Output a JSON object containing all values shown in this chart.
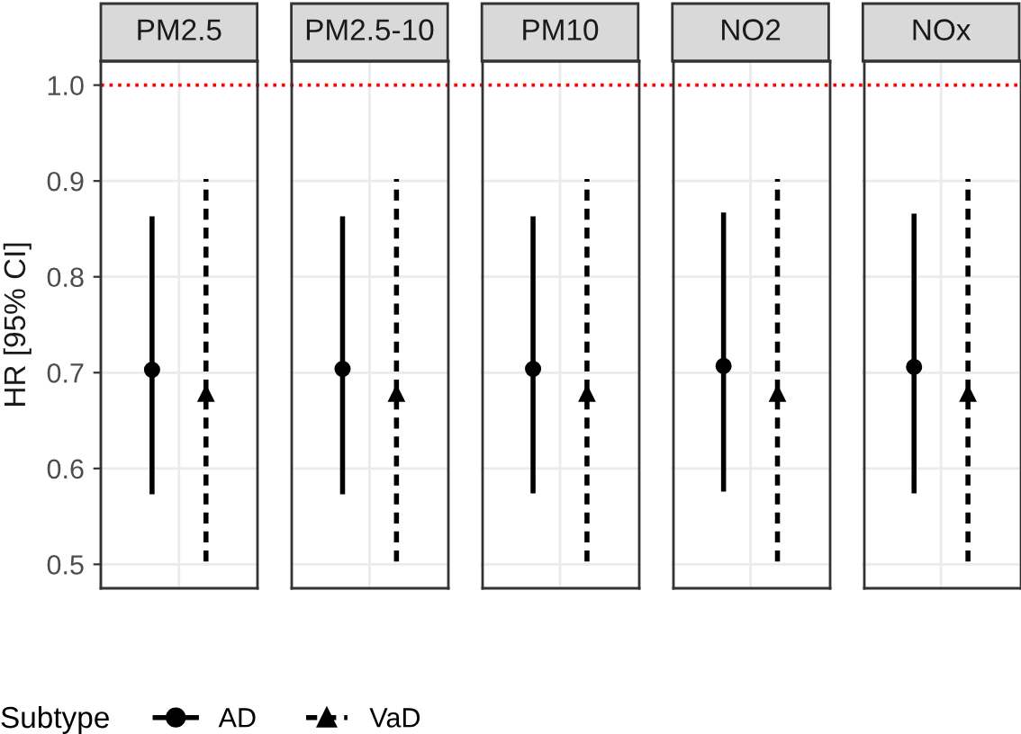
{
  "chart_data": {
    "type": "scatter",
    "ylabel": "HR [95% CI]",
    "categories": [
      "PM2.5",
      "PM2.5-10",
      "PM10",
      "NO2",
      "NOx"
    ],
    "ylim": [
      0.475,
      1.025
    ],
    "yticks": [
      {
        "value": 0.5,
        "label": "0.5"
      },
      {
        "value": 0.6,
        "label": "0.6"
      },
      {
        "value": 0.7,
        "label": "0.7"
      },
      {
        "value": 0.8,
        "label": "0.8"
      },
      {
        "value": 0.9,
        "label": "0.9"
      },
      {
        "value": 1.0,
        "label": "1.0"
      }
    ],
    "grid": true,
    "legend": "bottom",
    "legend_title": "Subtype",
    "ref_lines": [
      {
        "axis": "y",
        "value": 1.0,
        "color": "#ff0000",
        "line_style": "dotted"
      }
    ],
    "series": [
      {
        "name": "AD",
        "color": "#000000",
        "marker": "circle",
        "line_style": "solid",
        "values": [
          0.703,
          0.704,
          0.704,
          0.707,
          0.706
        ],
        "errors": [
          [
            0.573,
            0.863
          ],
          [
            0.573,
            0.863
          ],
          [
            0.574,
            0.863
          ],
          [
            0.576,
            0.867
          ],
          [
            0.574,
            0.866
          ]
        ]
      },
      {
        "name": "VaD",
        "color": "#000000",
        "marker": "triangle",
        "line_style": "dashed",
        "values": [
          0.678,
          0.678,
          0.678,
          0.678,
          0.678
        ],
        "errors": [
          [
            0.503,
            0.902
          ],
          [
            0.503,
            0.902
          ],
          [
            0.503,
            0.902
          ],
          [
            0.503,
            0.902
          ],
          [
            0.503,
            0.902
          ]
        ]
      }
    ]
  }
}
